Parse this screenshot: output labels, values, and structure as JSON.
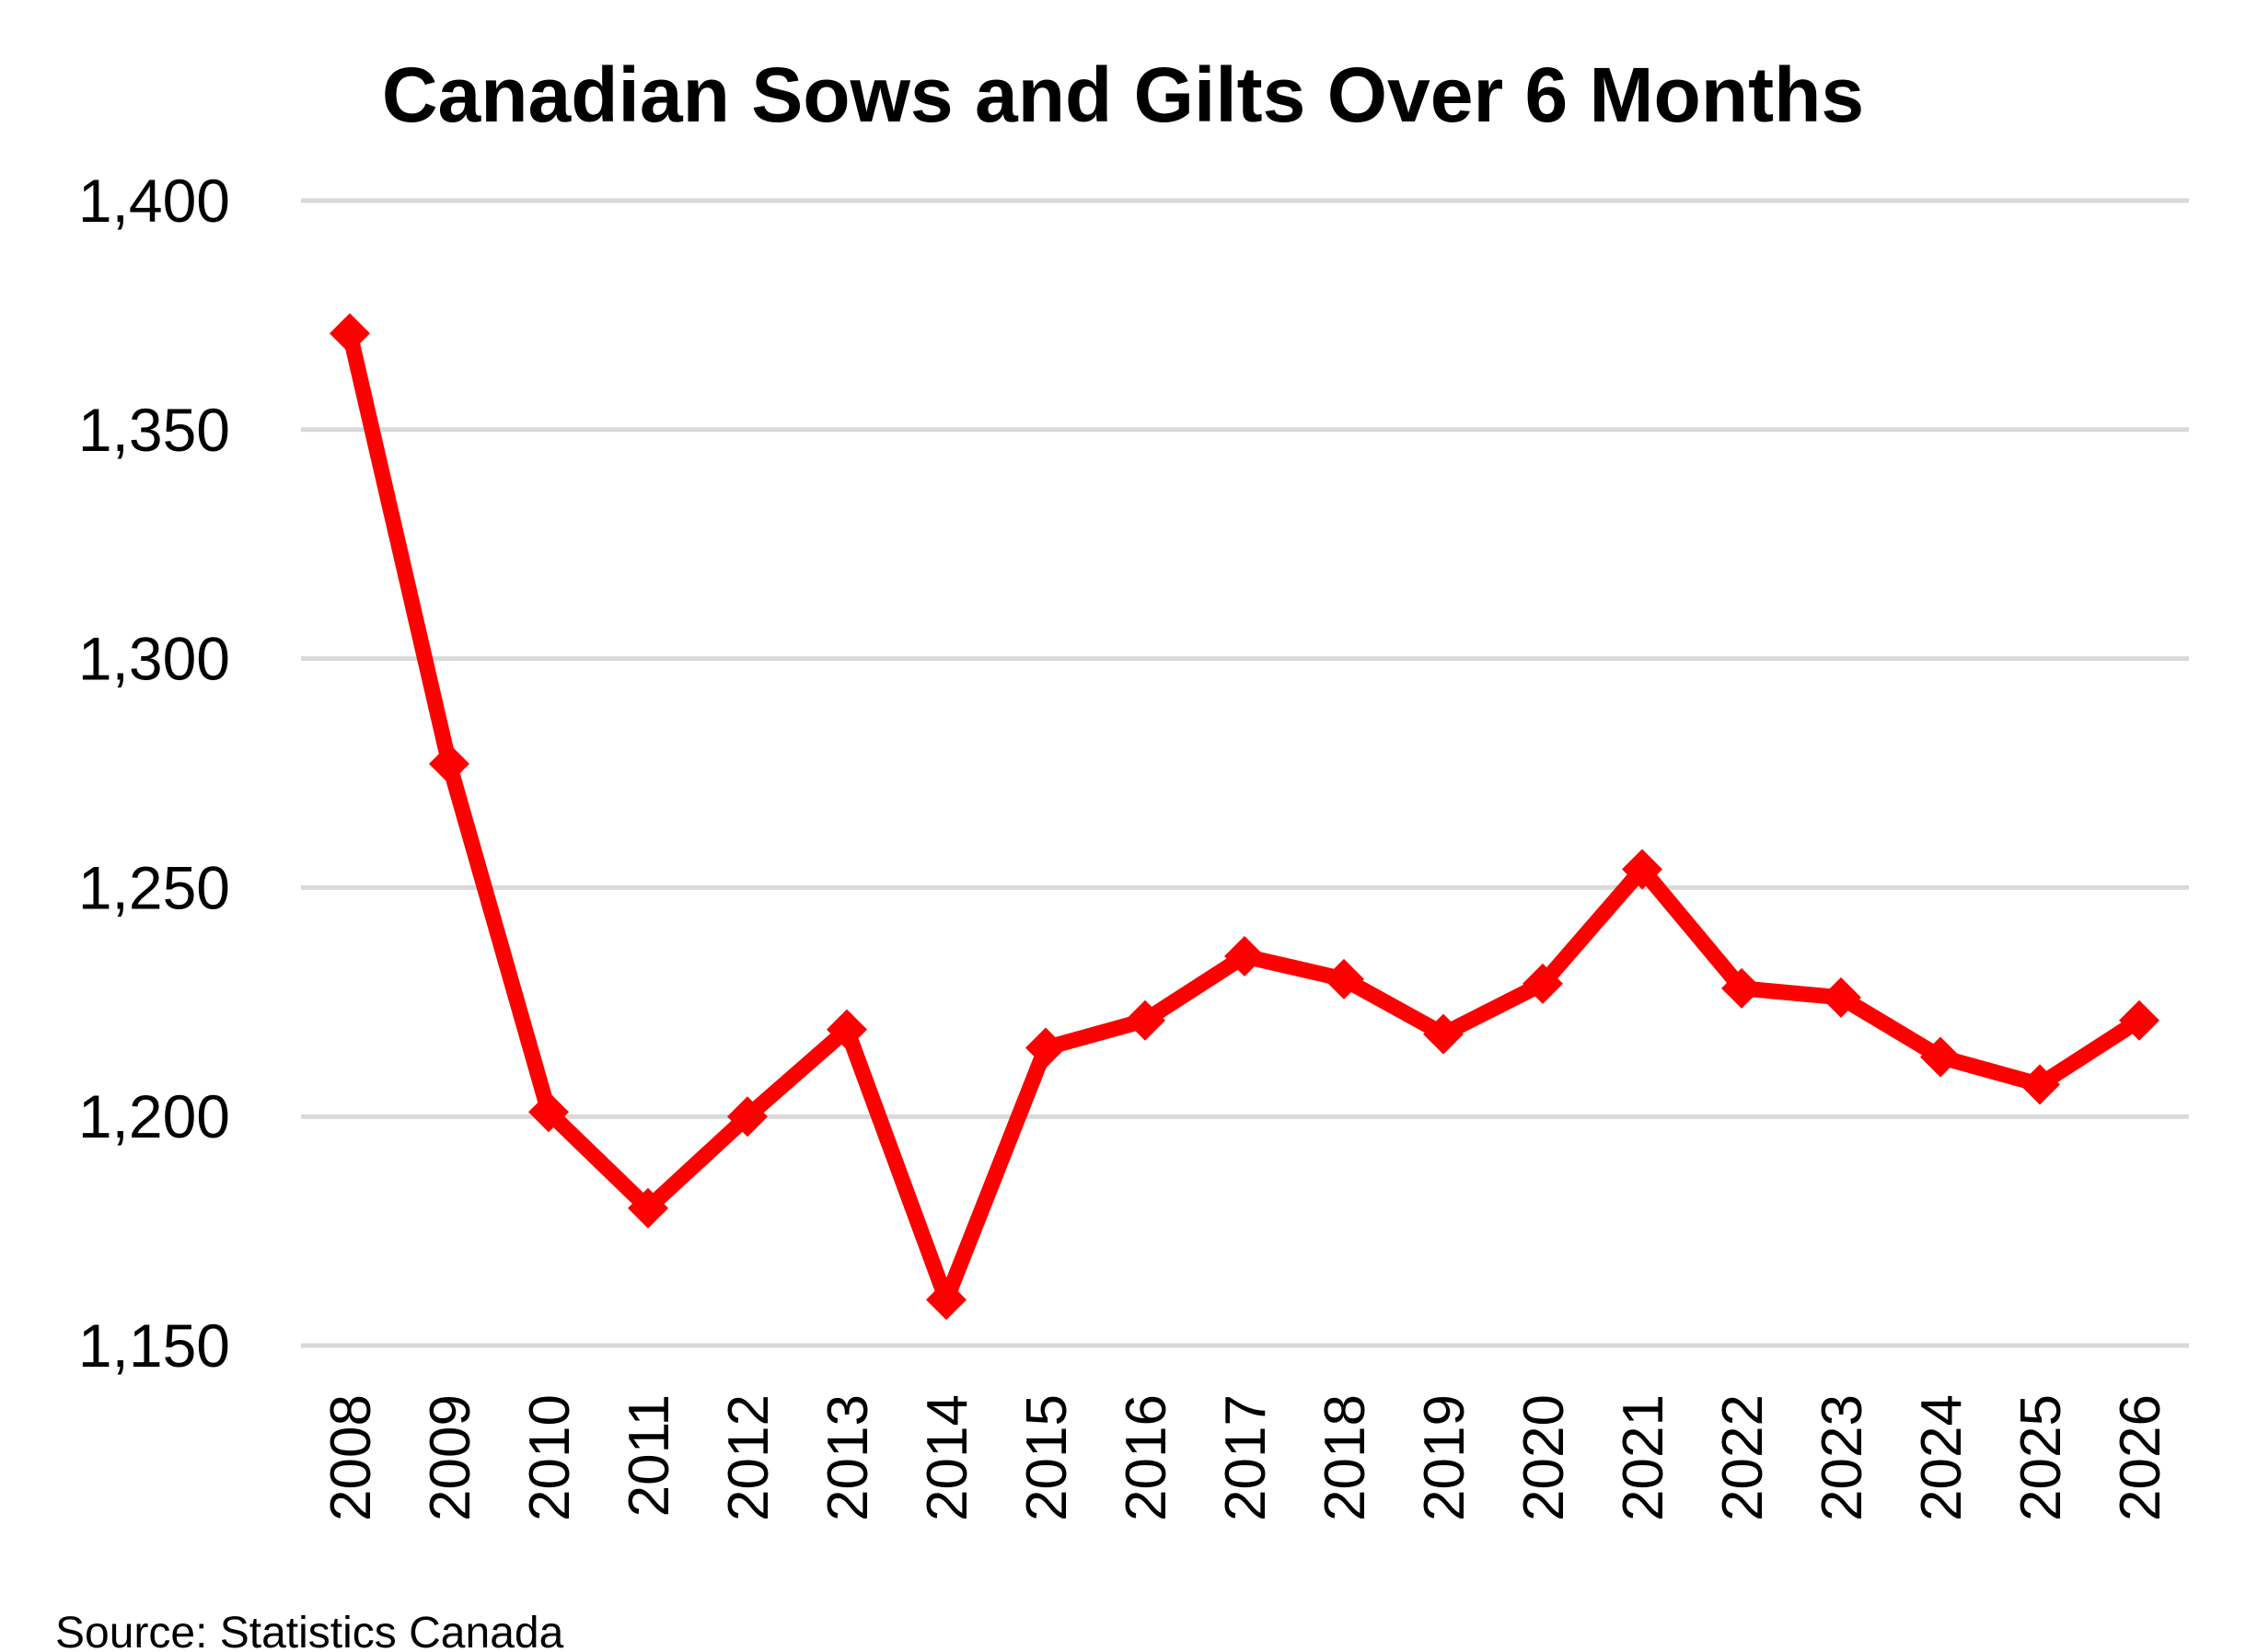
{
  "chart_data": {
    "type": "line",
    "title": "Canadian Sows and Gilts Over 6 Months",
    "xlabel": "",
    "ylabel": "",
    "categories": [
      "2008",
      "2009",
      "2010",
      "2011",
      "2012",
      "2013",
      "2014",
      "2015",
      "2016",
      "2017",
      "2018",
      "2019",
      "2020",
      "2021",
      "2022",
      "2023",
      "2024",
      "2025",
      "2026"
    ],
    "series": [
      {
        "values": [
          1371,
          1277,
          1201,
          1180,
          1200,
          1219,
          1160,
          1215,
          1221,
          1235,
          1230,
          1218,
          1229,
          1254,
          1228,
          1226,
          1213,
          1207,
          1221
        ],
        "color": "#ff0000",
        "marker": "diamond"
      }
    ],
    "ylim": [
      1150,
      1400
    ],
    "yticks": [
      1150,
      1200,
      1250,
      1300,
      1350,
      1400
    ],
    "ytick_labels": [
      "1,150",
      "1,200",
      "1,250",
      "1,300",
      "1,350",
      "1,400"
    ],
    "grid": true,
    "legend": "none",
    "x_tick_rotation": "vertical"
  },
  "source": "Source: Statistics Canada"
}
